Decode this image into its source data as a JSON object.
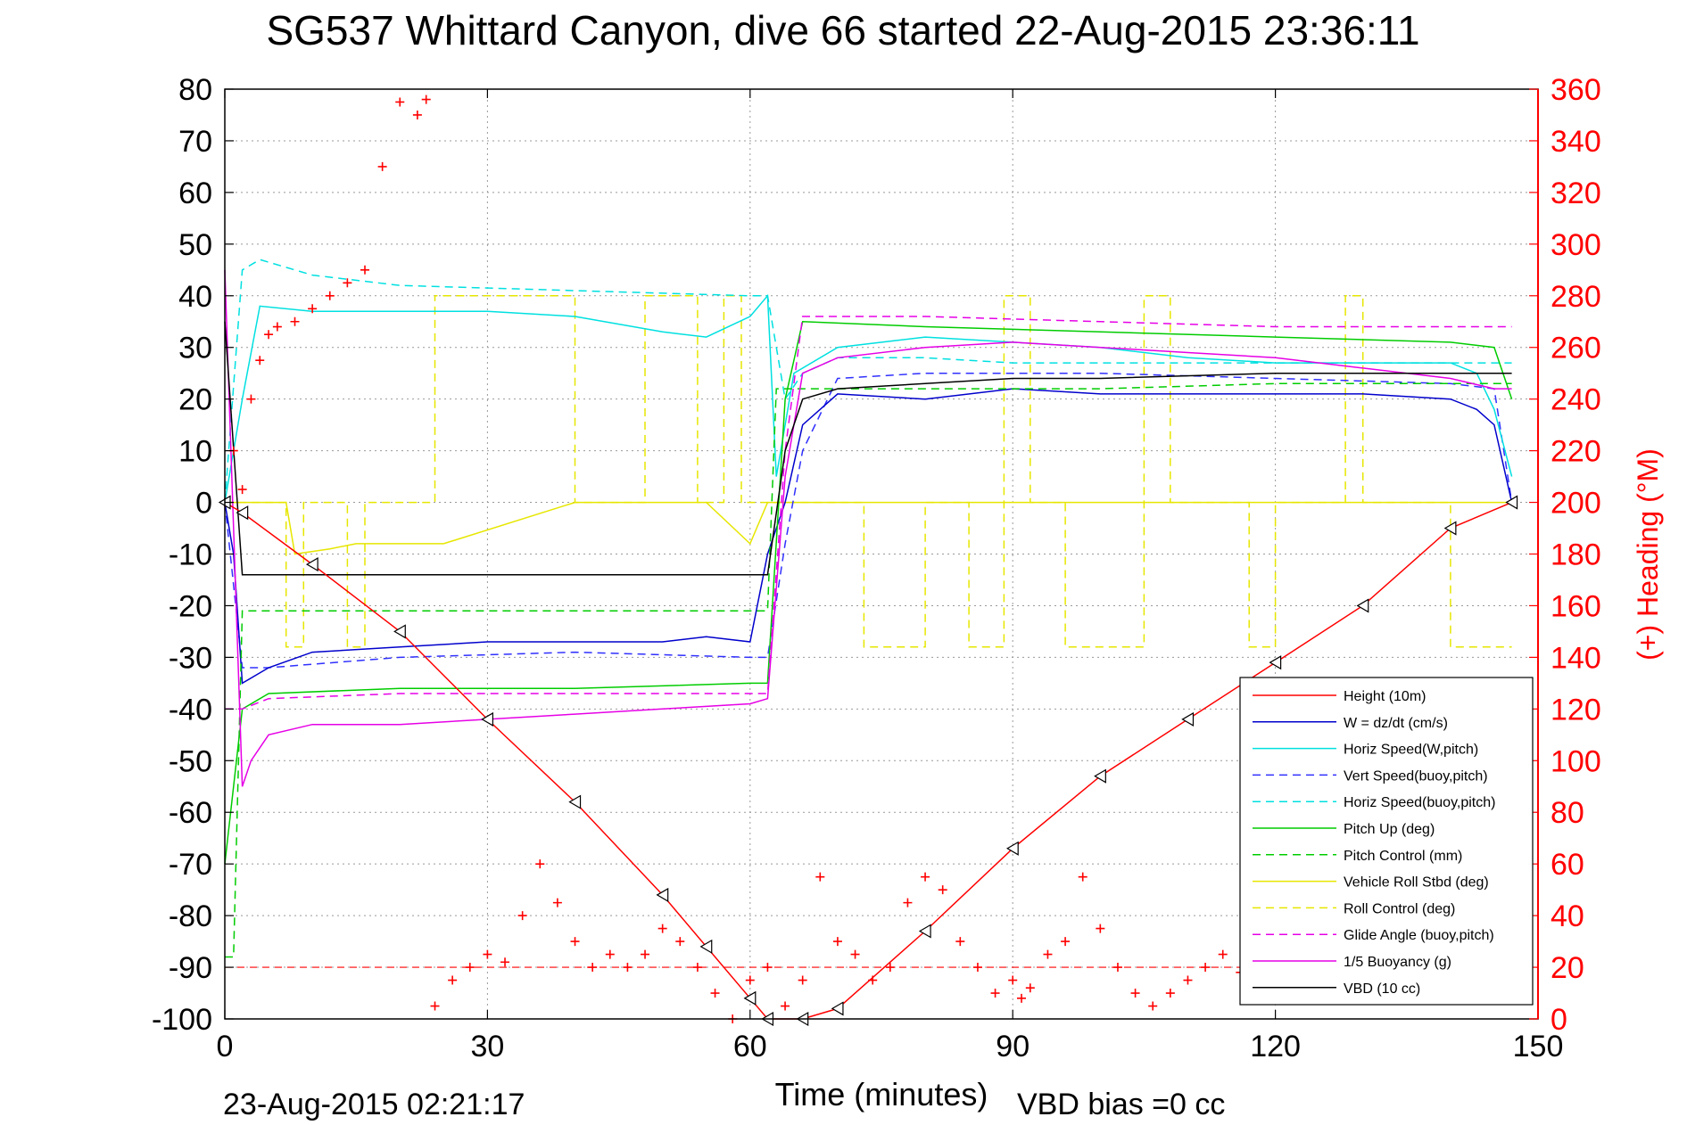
{
  "chart_data": {
    "type": "line",
    "title": "SG537 Whittard Canyon, dive 66 started 22-Aug-2015 23:36:11",
    "xlabel": "Time (minutes)",
    "ylabel": "",
    "y2label": "(+) Heading (°M)",
    "xlim": [
      0,
      150
    ],
    "ylim": [
      -100,
      80
    ],
    "y2lim": [
      0,
      360
    ],
    "xticks": [
      0,
      30,
      60,
      90,
      120,
      150
    ],
    "yticks": [
      80,
      70,
      60,
      50,
      40,
      30,
      20,
      10,
      0,
      -10,
      -20,
      -30,
      -40,
      -50,
      -60,
      -70,
      -80,
      -90,
      -100
    ],
    "y2ticks": [
      360,
      340,
      320,
      300,
      280,
      260,
      240,
      220,
      200,
      180,
      160,
      140,
      120,
      100,
      80,
      60,
      40,
      20,
      0
    ],
    "grid": true,
    "legend_position": "bottom-right",
    "footer_left": "23-Aug-2015 02:21:17",
    "footer_right": "VBD bias =0 cc",
    "series": [
      {
        "name": "Height (10m)",
        "color": "#ff0000",
        "style": "solid",
        "x": [
          0,
          2,
          10,
          20,
          30,
          40,
          50,
          55,
          60,
          62,
          66,
          70,
          80,
          90,
          100,
          110,
          120,
          130,
          140,
          147
        ],
        "y": [
          0,
          -2,
          -12,
          -25,
          -42,
          -58,
          -76,
          -86,
          -96,
          -100,
          -100,
          -98,
          -83,
          -67,
          -53,
          -42,
          -31,
          -20,
          -5,
          0
        ]
      },
      {
        "name": "W = dz/dt (cm/s)",
        "color": "#0000cc",
        "style": "solid",
        "x": [
          0,
          1,
          2,
          5,
          10,
          20,
          30,
          40,
          50,
          55,
          60,
          62,
          64,
          66,
          70,
          80,
          90,
          100,
          110,
          120,
          130,
          140,
          143,
          145,
          147
        ],
        "y": [
          0,
          -10,
          -35,
          -32,
          -29,
          -28,
          -27,
          -27,
          -27,
          -26,
          -27,
          -10,
          0,
          15,
          21,
          20,
          22,
          21,
          21,
          21,
          21,
          20,
          18,
          15,
          0
        ]
      },
      {
        "name": "Horiz Speed(W,pitch)",
        "color": "#00e0e0",
        "style": "solid",
        "x": [
          0,
          2,
          4,
          10,
          20,
          30,
          40,
          50,
          55,
          60,
          62,
          63,
          64,
          65,
          70,
          80,
          90,
          100,
          110,
          120,
          130,
          140,
          143,
          145,
          147
        ],
        "y": [
          0,
          20,
          38,
          37,
          37,
          37,
          36,
          33,
          32,
          36,
          40,
          5,
          15,
          25,
          30,
          32,
          31,
          30,
          28,
          27,
          27,
          27,
          25,
          18,
          5
        ]
      },
      {
        "name": "Vert Speed(buoy,pitch)",
        "color": "#3030ff",
        "style": "dashed",
        "x": [
          0,
          2,
          5,
          20,
          40,
          60,
          62,
          64,
          66,
          70,
          80,
          90,
          100,
          120,
          140,
          145,
          147
        ],
        "y": [
          0,
          -32,
          -32,
          -30,
          -29,
          -30,
          -30,
          -8,
          10,
          24,
          25,
          25,
          25,
          24,
          23,
          22,
          0
        ]
      },
      {
        "name": "Horiz Speed(buoy,pitch)",
        "color": "#00e0e0",
        "style": "dashed",
        "x": [
          0,
          2,
          4,
          10,
          20,
          40,
          60,
          62,
          64,
          66,
          70,
          80,
          90,
          100,
          120,
          140,
          147
        ],
        "y": [
          0,
          45,
          47,
          44,
          42,
          41,
          40,
          40,
          20,
          25,
          28,
          28,
          27,
          27,
          27,
          27,
          27
        ]
      },
      {
        "name": "Pitch Up (deg)",
        "color": "#00cc00",
        "style": "solid",
        "x": [
          0,
          2,
          5,
          20,
          40,
          60,
          62,
          64,
          66,
          80,
          100,
          120,
          140,
          145,
          147
        ],
        "y": [
          -70,
          -40,
          -37,
          -36,
          -36,
          -35,
          -35,
          20,
          35,
          34,
          33,
          32,
          31,
          30,
          20
        ]
      },
      {
        "name": "Pitch Control (mm)",
        "color": "#00cc00",
        "style": "dashed",
        "x": [
          0,
          1,
          2,
          5,
          20,
          40,
          60,
          62,
          63,
          64,
          66,
          90,
          100,
          120,
          147
        ],
        "y": [
          -88,
          -88,
          -21,
          -21,
          -21,
          -21,
          -21,
          -21,
          22,
          22,
          22,
          22,
          22,
          23,
          23
        ]
      },
      {
        "name": "Vehicle Roll Stbd (deg)",
        "color": "#e6e600",
        "style": "solid",
        "x": [
          0,
          7,
          8,
          12,
          15,
          20,
          25,
          40,
          50,
          55,
          60,
          62,
          70,
          90,
          100,
          110,
          120,
          130,
          140,
          147
        ],
        "y": [
          0,
          0,
          -10,
          -9,
          -8,
          -8,
          -8,
          0,
          0,
          0,
          -8,
          0,
          0,
          0,
          0,
          0,
          0,
          0,
          0,
          0
        ]
      },
      {
        "name": "Roll Control (deg)",
        "color": "#e6e600",
        "style": "dashed",
        "x": [
          0,
          7,
          7,
          9,
          9,
          14,
          14,
          16,
          16,
          24,
          24,
          40,
          40,
          48,
          48,
          54,
          54,
          57,
          57,
          59,
          59,
          62,
          62,
          73,
          73,
          80,
          80,
          85,
          85,
          89,
          89,
          92,
          92,
          96,
          96,
          105,
          105,
          108,
          108,
          117,
          117,
          120,
          120,
          128,
          128,
          130,
          130,
          140,
          140,
          147
        ],
        "y": [
          0,
          0,
          -28,
          -28,
          0,
          0,
          -28,
          -28,
          0,
          0,
          40,
          40,
          0,
          0,
          40,
          40,
          0,
          0,
          40,
          40,
          0,
          0,
          0,
          0,
          -28,
          -28,
          0,
          0,
          -28,
          -28,
          40,
          40,
          0,
          0,
          -28,
          -28,
          40,
          40,
          0,
          0,
          -28,
          -28,
          0,
          0,
          40,
          40,
          0,
          0,
          -28,
          -28
        ]
      },
      {
        "name": "Glide Angle (buoy,pitch)",
        "color": "#e600e6",
        "style": "dashed",
        "x": [
          0,
          2,
          5,
          20,
          40,
          60,
          62,
          64,
          66,
          80,
          100,
          120,
          140,
          147
        ],
        "y": [
          -40,
          -40,
          -38,
          -37,
          -37,
          -37,
          -37,
          10,
          36,
          36,
          35,
          34,
          34,
          34
        ]
      },
      {
        "name": "1/5 Buoyancy (g)",
        "color": "#e600e6",
        "style": "solid",
        "x": [
          0,
          2,
          3,
          5,
          10,
          20,
          30,
          40,
          50,
          60,
          62,
          64,
          66,
          70,
          80,
          90,
          100,
          110,
          120,
          130,
          140,
          145,
          147
        ],
        "y": [
          45,
          -55,
          -50,
          -45,
          -43,
          -43,
          -42,
          -41,
          -40,
          -39,
          -38,
          5,
          25,
          28,
          30,
          31,
          30,
          29,
          28,
          26,
          24,
          22,
          22
        ]
      },
      {
        "name": "VBD (10 cc)",
        "color": "#000000",
        "style": "solid",
        "x": [
          0,
          2,
          2,
          62,
          62,
          64,
          66,
          70,
          80,
          90,
          100,
          120,
          140,
          147
        ],
        "y": [
          35,
          -14,
          -14,
          -14,
          -14,
          10,
          20,
          22,
          23,
          24,
          24,
          25,
          25,
          25
        ]
      },
      {
        "name": "Heading (°M)",
        "color": "#ff0000",
        "style": "markers",
        "axis": "y2",
        "x": [
          0,
          1,
          2,
          3,
          4,
          5,
          6,
          8,
          10,
          12,
          14,
          16,
          18,
          20,
          22,
          23,
          24,
          26,
          28,
          30,
          32,
          34,
          36,
          38,
          40,
          42,
          44,
          46,
          48,
          50,
          52,
          54,
          56,
          58,
          60,
          62,
          64,
          66,
          68,
          70,
          72,
          74,
          76,
          78,
          80,
          82,
          84,
          86,
          88,
          90,
          91,
          92,
          94,
          96,
          98,
          100,
          102,
          104,
          106,
          108,
          110,
          112,
          114,
          116,
          118,
          120,
          122,
          124,
          126,
          128,
          130,
          132,
          134,
          136,
          138,
          140,
          142,
          144,
          146
        ],
        "y": [
          200,
          220,
          205,
          240,
          255,
          265,
          268,
          270,
          275,
          280,
          285,
          290,
          330,
          355,
          350,
          356,
          5,
          15,
          20,
          25,
          22,
          40,
          60,
          45,
          30,
          20,
          25,
          20,
          25,
          35,
          30,
          20,
          10,
          0,
          15,
          20,
          5,
          15,
          55,
          30,
          25,
          15,
          20,
          45,
          55,
          50,
          30,
          20,
          10,
          15,
          8,
          12,
          25,
          30,
          55,
          35,
          20,
          10,
          5,
          10,
          15,
          20,
          25,
          18,
          20,
          25,
          22,
          20,
          18,
          15,
          10,
          12,
          14,
          15,
          18,
          20,
          15,
          12,
          10
        ]
      }
    ]
  }
}
